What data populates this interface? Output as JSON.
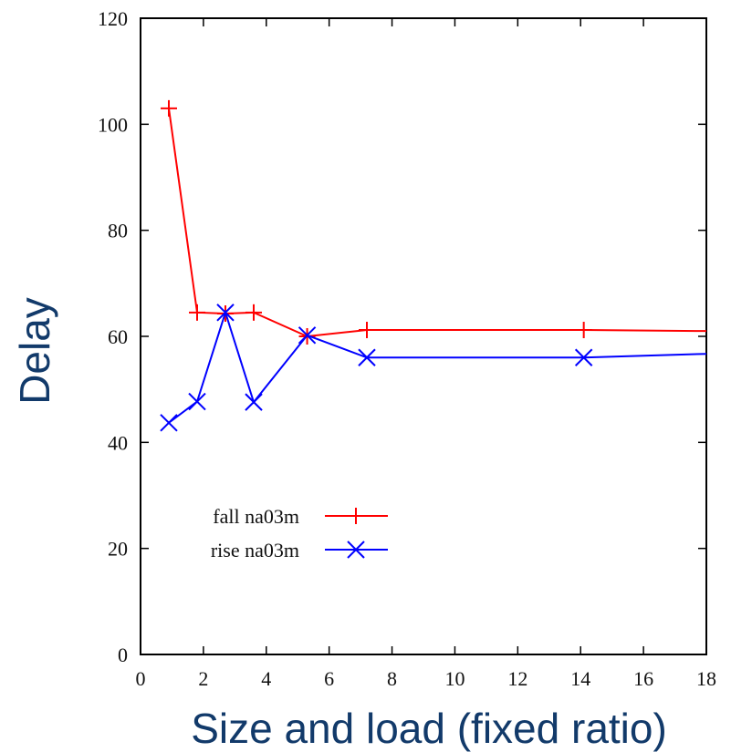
{
  "chart_data": {
    "type": "line",
    "title": "",
    "xlabel": "Size and load (fixed ratio)",
    "ylabel": "Delay",
    "xlim": [
      0,
      18
    ],
    "ylim": [
      0,
      120
    ],
    "x_ticks": [
      0,
      2,
      4,
      6,
      8,
      10,
      12,
      14,
      16,
      18
    ],
    "x_tick_labels": [
      "0",
      "2",
      "4",
      "6",
      "8",
      "10",
      "12",
      "14",
      "16",
      "18"
    ],
    "y_ticks": [
      0,
      20,
      40,
      60,
      80,
      100,
      120
    ],
    "y_tick_labels": [
      "0",
      "20",
      "40",
      "60",
      "80",
      "100",
      "120"
    ],
    "grid": false,
    "legend": {
      "placement": "bottom-left"
    },
    "series": [
      {
        "name": "fall na03m",
        "color": "#ff0000",
        "marker": "plus",
        "x": [
          0.9,
          1.8,
          2.7,
          3.6,
          5.3,
          7.2,
          14.1,
          18
        ],
        "y": [
          103,
          64.5,
          64.3,
          64.5,
          60,
          61.2,
          61.2,
          61
        ]
      },
      {
        "name": "rise na03m",
        "color": "#0000ff",
        "marker": "x",
        "x": [
          0.9,
          1.8,
          2.7,
          3.6,
          5.3,
          7.2,
          14.1,
          18
        ],
        "y": [
          43.7,
          47.7,
          64.5,
          47.6,
          60.2,
          56,
          56,
          56.7
        ]
      }
    ]
  }
}
